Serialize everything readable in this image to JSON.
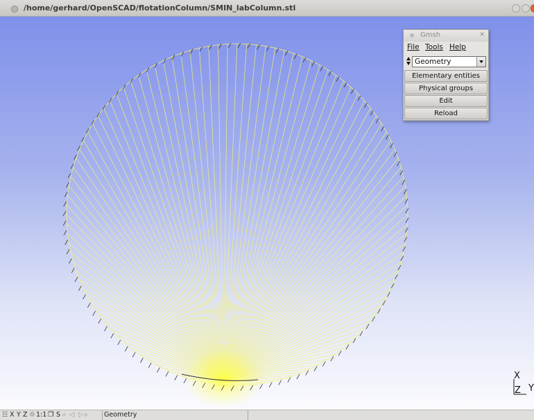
{
  "window": {
    "title": "/home/gerhard/OpenSCAD/flotationColumn/SMIN_labColumn.stl"
  },
  "panel": {
    "title": "Gmsh",
    "close_glyph": "×",
    "menus": [
      "File",
      "Tools",
      "Help"
    ],
    "module": "Geometry",
    "buttons": [
      "Elementary entities",
      "Physical groups",
      "Edit",
      "Reload"
    ]
  },
  "axes": {
    "x_label": "X",
    "y_label": "Y",
    "z_label": "Z"
  },
  "statusbar": {
    "grid_icon": "☷",
    "x": "X",
    "y": "Y",
    "z": "Z",
    "rotate_glyph": "♲",
    "scale": "1:1",
    "ortho_glyph": "❐",
    "s": "S",
    "first": "◃",
    "prev": "◁",
    "play": "▷",
    "next": "▹",
    "module": "Geometry"
  },
  "colors": {
    "mesh_line": "#f2f07a",
    "fan_core": "#ffff33",
    "tick": "#333333",
    "viewport_top": "#7f90ea",
    "viewport_bottom": "#fbfbfe"
  },
  "icons": {
    "title": "window-menu-icon",
    "close": "close-icon",
    "minimize": "minimize-icon",
    "maximize": "maximize-icon"
  }
}
